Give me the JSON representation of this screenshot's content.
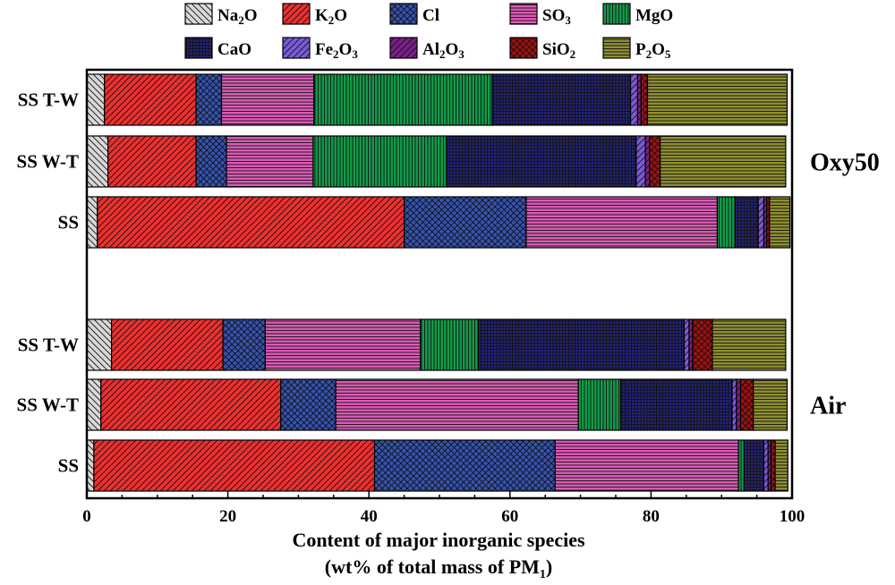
{
  "chart_data": {
    "type": "bar",
    "orientation": "horizontal",
    "stacked": true,
    "xlabel_line1": "Content of major inorganic species",
    "xlabel_line2_pre": "(wt% of total mass of PM",
    "xlabel_line2_sub": "1",
    "xlabel_line2_post": ")",
    "xlim": [
      0,
      100
    ],
    "xticks": [
      0,
      20,
      40,
      60,
      80,
      100
    ],
    "xtick_labels": [
      "0",
      "20",
      "40",
      "60",
      "80",
      "100"
    ],
    "categories": [
      "SS T-W",
      "SS W-T",
      "SS",
      "SS T-W",
      "SS W-T",
      "SS"
    ],
    "groups": [
      {
        "label": "Oxy50",
        "rows": [
          0,
          1,
          2
        ]
      },
      {
        "label": "Air",
        "rows": [
          3,
          4,
          5
        ]
      }
    ],
    "legend_position": "top",
    "series": [
      {
        "name": "Na2O",
        "base": "Na",
        "sub": "2",
        "post": "O",
        "color": "#d8d8d8",
        "pattern": "diag-left",
        "values": [
          2.5,
          3.0,
          1.5,
          3.5,
          2.0,
          1.0
        ]
      },
      {
        "name": "K2O",
        "base": "K",
        "sub": "2",
        "post": "O",
        "color": "#ee2f2f",
        "pattern": "diag-right",
        "values": [
          13.0,
          12.5,
          43.5,
          15.8,
          25.5,
          39.8
        ]
      },
      {
        "name": "Cl",
        "base": "Cl",
        "sub": "",
        "post": "",
        "color": "#3552b0",
        "pattern": "cross",
        "values": [
          3.6,
          4.3,
          17.3,
          6.0,
          7.8,
          25.6
        ]
      },
      {
        "name": "SO3",
        "base": "SO",
        "sub": "3",
        "post": "",
        "color": "#d95bb5",
        "pattern": "horizontal",
        "values": [
          13.1,
          12.3,
          27.1,
          22.0,
          34.4,
          26.0
        ]
      },
      {
        "name": "MgO",
        "base": "MgO",
        "sub": "",
        "post": "",
        "color": "#129a4a",
        "pattern": "vertical",
        "values": [
          25.3,
          18.9,
          2.5,
          8.2,
          6.0,
          0.8
        ]
      },
      {
        "name": "CaO",
        "base": "CaO",
        "sub": "",
        "post": "",
        "color": "#25237a",
        "pattern": "grid",
        "values": [
          19.6,
          26.9,
          3.3,
          29.2,
          15.8,
          2.8
        ]
      },
      {
        "name": "Fe2O3",
        "base": "Fe",
        "sub": "2",
        "post": "O3",
        "color": "#7a5ad8",
        "pattern": "diag-right",
        "values": [
          1.0,
          1.3,
          0.8,
          0.7,
          0.6,
          0.6
        ]
      },
      {
        "name": "Al2O3",
        "base": "Al",
        "sub": "2",
        "post": "O3",
        "color": "#7a1f8a",
        "pattern": "diag-right",
        "values": [
          0.5,
          0.6,
          0.4,
          0.5,
          0.6,
          0.4
        ]
      },
      {
        "name": "SiO2",
        "base": "SiO",
        "sub": "2",
        "post": "",
        "color": "#a01010",
        "pattern": "cross",
        "values": [
          0.9,
          1.5,
          0.4,
          2.8,
          1.8,
          0.6
        ]
      },
      {
        "name": "P2O5",
        "base": "P",
        "sub": "2",
        "post": "O5",
        "color": "#8f8f30",
        "pattern": "horizontal",
        "values": [
          19.8,
          17.8,
          2.9,
          10.4,
          4.8,
          1.8
        ]
      }
    ]
  }
}
